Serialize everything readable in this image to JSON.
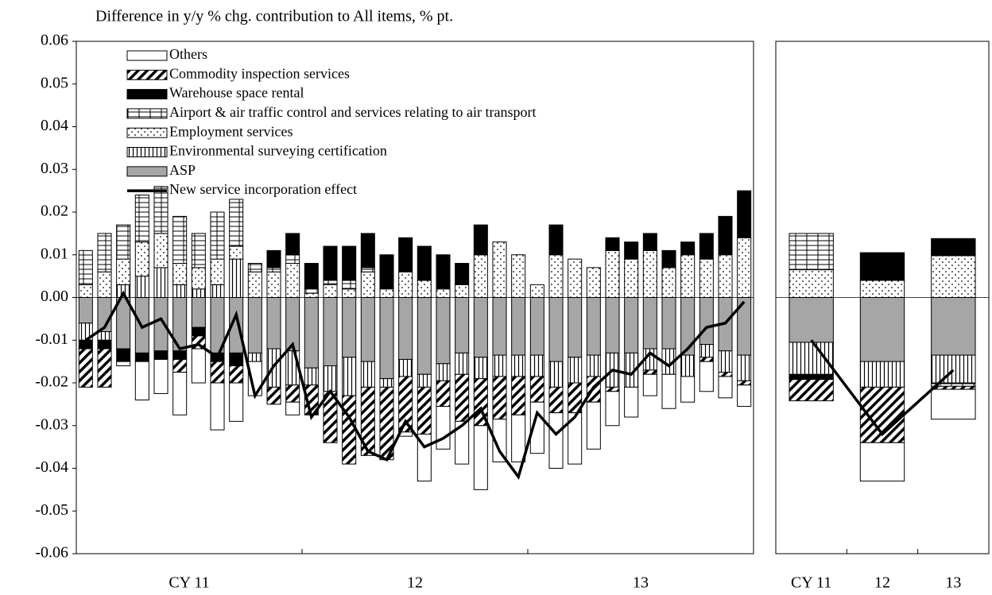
{
  "chart_data": [
    {
      "type": "bar",
      "title": "Difference in y/y % chg. contribution to All items, % pt.",
      "categories": [
        null,
        null,
        null,
        null,
        null,
        null,
        "CY 11",
        null,
        null,
        null,
        null,
        null,
        null,
        null,
        null,
        null,
        null,
        null,
        "12",
        null,
        null,
        null,
        null,
        null,
        null,
        null,
        null,
        null,
        null,
        null,
        "13",
        null,
        null,
        null,
        null,
        null
      ],
      "ylim": [
        -0.06,
        0.06
      ],
      "yticks": [
        0.06,
        0.05,
        0.04,
        0.03,
        0.02,
        0.01,
        {
          "value": 0,
          "label": "0.00"
        },
        -0.01,
        -0.02,
        -0.03,
        -0.04,
        -0.05,
        -0.06
      ],
      "series": [
        {
          "name": "ASP",
          "color": "#a6a6a6",
          "values": [
            -0.006,
            -0.008,
            -0.012,
            -0.013,
            -0.0125,
            -0.0125,
            -0.007,
            -0.013,
            -0.013,
            -0.013,
            -0.012,
            -0.0125,
            -0.0165,
            -0.016,
            -0.014,
            -0.015,
            -0.019,
            -0.0145,
            -0.018,
            -0.0155,
            -0.013,
            -0.014,
            -0.0135,
            -0.0135,
            -0.0135,
            -0.015,
            -0.014,
            -0.0135,
            -0.013,
            -0.013,
            -0.012,
            -0.012,
            -0.0135,
            -0.011,
            -0.0125,
            -0.0135
          ]
        },
        {
          "name": "Environmental surveying certification",
          "color": "#ffffff",
          "pattern": "vlines",
          "values": [
            -0.004,
            -0.002,
            0.003,
            0.005,
            0.007,
            0.003,
            0.002,
            0.003,
            0.009,
            -0.002,
            -0.009,
            -0.008,
            -0.004,
            -0.006,
            -0.009,
            -0.006,
            -0.002,
            -0.004,
            -0.003,
            -0.004,
            -0.005,
            -0.005,
            -0.005,
            -0.005,
            -0.005,
            -0.006,
            -0.006,
            -0.005,
            -0.008,
            -0.008,
            -0.005,
            -0.006,
            -0.005,
            -0.003,
            -0.005,
            -0.006
          ]
        },
        {
          "name": "Employment services",
          "color": "#ffffff",
          "pattern": "dots",
          "values": [
            0.003,
            0.006,
            0.006,
            0.008,
            0.008,
            0.005,
            0.005,
            0.006,
            0.003,
            0.006,
            0.006,
            0.008,
            0.001,
            0.003,
            0.002,
            0.006,
            0.002,
            0.006,
            0.004,
            0.002,
            0.003,
            0.01,
            0.013,
            0.01,
            0.003,
            0.01,
            0.009,
            0.007,
            0.011,
            0.009,
            0.011,
            0.007,
            0.01,
            0.009,
            0.01,
            0.014
          ]
        },
        {
          "name": "Airport & air traffic control and services relating to air transport",
          "color": "#ffffff",
          "pattern": "grid",
          "values": [
            0.008,
            0.009,
            0.008,
            0.011,
            0.011,
            0.011,
            0.008,
            0.011,
            0.011,
            0.002,
            0.001,
            0.002,
            0.001,
            0.001,
            0.002,
            0.001,
            0,
            0,
            0,
            0,
            0,
            0,
            0,
            0,
            0,
            0,
            0,
            0,
            0,
            0,
            0,
            0,
            0,
            0,
            0,
            0
          ]
        },
        {
          "name": "Warehouse space rental",
          "color": "#000000",
          "values": [
            -0.002,
            -0.002,
            -0.003,
            -0.002,
            -0.002,
            -0.002,
            -0.002,
            -0.002,
            -0.003,
            0,
            0.004,
            0.005,
            0.006,
            0.008,
            0.008,
            0.008,
            0.008,
            0.008,
            0.008,
            0.008,
            0.005,
            0.007,
            0,
            0,
            0,
            0.007,
            0,
            0,
            0.003,
            0.004,
            0.004,
            0.004,
            0.003,
            0.006,
            0.009,
            0.011
          ]
        },
        {
          "name": "Commodity inspection services",
          "color": "#ffffff",
          "pattern": "hatch",
          "values": [
            -0.009,
            -0.009,
            0,
            0,
            0,
            -0.003,
            -0.003,
            -0.005,
            -0.004,
            0,
            -0.004,
            -0.004,
            -0.007,
            -0.012,
            -0.016,
            -0.016,
            -0.017,
            -0.013,
            -0.011,
            -0.006,
            -0.011,
            -0.011,
            -0.01,
            -0.009,
            -0.006,
            -0.006,
            -0.007,
            -0.006,
            -0.001,
            0,
            -0.001,
            0,
            0,
            -0.001,
            -0.001,
            -0.001
          ]
        },
        {
          "name": "Others",
          "color": "#ffffff",
          "values": [
            0,
            0,
            -0.001,
            -0.009,
            -0.008,
            -0.01,
            -0.008,
            -0.011,
            -0.009,
            -0.008,
            0,
            -0.003,
            0,
            0,
            0,
            0,
            0,
            -0.001,
            -0.011,
            -0.01,
            -0.01,
            -0.015,
            -0.01,
            -0.011,
            -0.012,
            -0.013,
            -0.012,
            -0.011,
            -0.008,
            -0.007,
            -0.005,
            -0.008,
            -0.006,
            -0.007,
            -0.005,
            -0.005
          ]
        }
      ],
      "line": {
        "name": "New service incorporation effect",
        "color": "#000000",
        "values": [
          -0.01,
          -0.007,
          0.001,
          -0.007,
          -0.005,
          -0.012,
          -0.011,
          -0.014,
          -0.004,
          -0.023,
          -0.016,
          -0.011,
          -0.028,
          -0.022,
          -0.028,
          -0.036,
          -0.038,
          -0.029,
          -0.035,
          -0.033,
          -0.03,
          -0.026,
          -0.036,
          -0.042,
          -0.027,
          -0.032,
          -0.028,
          -0.021,
          -0.017,
          -0.018,
          -0.013,
          -0.016,
          -0.012,
          -0.007,
          -0.006,
          -0.001
        ]
      }
    },
    {
      "type": "bar",
      "categories": [
        "CY 11",
        "12",
        "13"
      ],
      "ylim": [
        -0.06,
        0.06
      ],
      "series": [
        {
          "values": [
            -0.0105,
            -0.015,
            -0.0135
          ]
        },
        {
          "values": [
            -0.0075,
            -0.006,
            -0.0065
          ]
        },
        {
          "values": [
            0.0065,
            0.004,
            0.0098
          ]
        },
        {
          "values": [
            0.0085,
            0,
            -0.0008
          ]
        },
        {
          "values": [
            -0.0012,
            0.0065,
            0.004
          ]
        },
        {
          "values": [
            -0.005,
            -0.013,
            -0.0007
          ]
        },
        {
          "values": [
            0,
            -0.009,
            -0.007
          ]
        }
      ],
      "line": {
        "values": [
          -0.01,
          -0.032,
          -0.017
        ]
      }
    }
  ]
}
